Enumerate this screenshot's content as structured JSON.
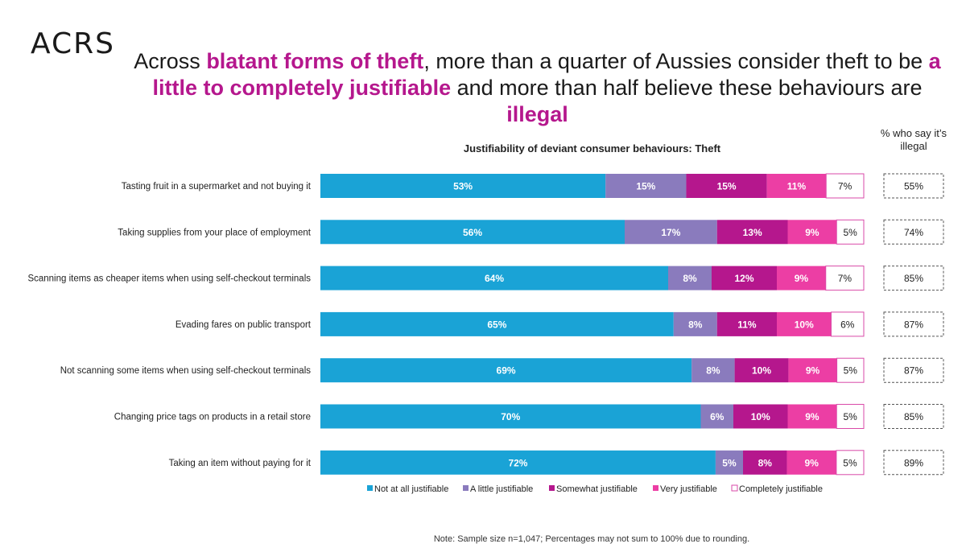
{
  "logo": "ACRS",
  "headline": {
    "parts": [
      {
        "text": "Across ",
        "highlight": false
      },
      {
        "text": "blatant forms of theft",
        "highlight": true
      },
      {
        "text": ", more than a quarter of Aussies consider theft to be ",
        "highlight": false
      },
      {
        "text": "a little to completely justifiable",
        "highlight": true
      },
      {
        "text": " and more than half believe these behaviours are ",
        "highlight": false
      },
      {
        "text": "illegal",
        "highlight": true
      }
    ]
  },
  "illegal_header": "% who say it’s illegal",
  "footnote": "Note: Sample size n=1,047; Percentages may not sum to 100% due to rounding.",
  "colors": {
    "highlight": "#b5178d",
    "not_at_all": "#1aa3d6",
    "a_little": "#8a7bbd",
    "somewhat": "#b5178d",
    "very": "#ec3ea4",
    "completely": "#ffffff",
    "completely_border": "#d94aa8"
  },
  "chart_data": {
    "type": "bar",
    "orientation": "horizontal",
    "stacked": true,
    "title": "Justifiability of deviant consumer behaviours: Theft",
    "categories": [
      "Tasting fruit in a supermarket and not buying it",
      "Taking supplies from your place of employment",
      "Scanning items as cheaper items when using self-checkout terminals",
      "Evading fares on public transport",
      "Not scanning some items when using self-checkout terminals",
      "Changing price tags on products in a retail store",
      "Taking an item without paying for it"
    ],
    "series": [
      {
        "name": "Not at all justifiable",
        "values": [
          53,
          56,
          64,
          65,
          69,
          70,
          72
        ]
      },
      {
        "name": "A little justifiable",
        "values": [
          15,
          17,
          8,
          8,
          8,
          6,
          5
        ]
      },
      {
        "name": "Somewhat justifiable",
        "values": [
          15,
          13,
          12,
          11,
          10,
          10,
          8
        ]
      },
      {
        "name": "Very justifiable",
        "values": [
          11,
          9,
          9,
          10,
          9,
          9,
          9
        ]
      },
      {
        "name": "Completely justifiable",
        "values": [
          7,
          5,
          7,
          6,
          5,
          5,
          5
        ]
      }
    ],
    "unit": "%",
    "illegal_pct": [
      55,
      74,
      85,
      87,
      87,
      85,
      89
    ],
    "legend_position": "bottom",
    "grid": false
  }
}
